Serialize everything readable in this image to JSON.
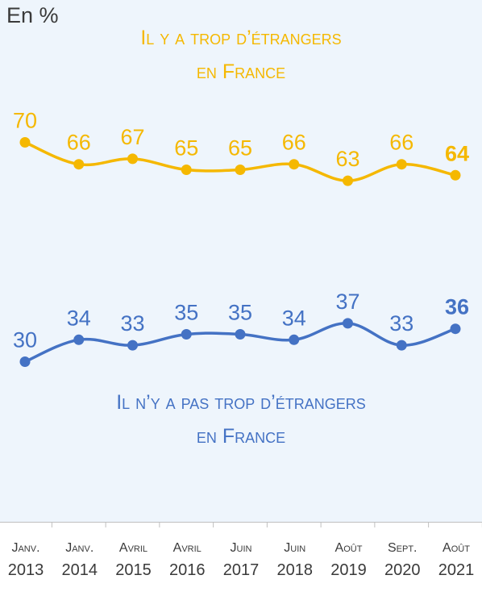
{
  "unit_label": "En %",
  "chart_data": {
    "type": "line",
    "x": [
      {
        "month": "Janv.",
        "year": "2013"
      },
      {
        "month": "Janv.",
        "year": "2014"
      },
      {
        "month": "Avril",
        "year": "2015"
      },
      {
        "month": "Avril",
        "year": "2016"
      },
      {
        "month": "Juin",
        "year": "2017"
      },
      {
        "month": "Juin",
        "year": "2018"
      },
      {
        "month": "Août",
        "year": "2019"
      },
      {
        "month": "Sept.",
        "year": "2020"
      },
      {
        "month": "Août",
        "year": "2021"
      }
    ],
    "series": [
      {
        "name": "Il y a trop d’étrangers en France",
        "name_lines": [
          "Il y a trop d’étrangers",
          "en France"
        ],
        "color": "#f5b800",
        "values": [
          70,
          66,
          67,
          65,
          65,
          66,
          63,
          66,
          64
        ]
      },
      {
        "name": "Il n’y a pas trop d’étrangers en France",
        "name_lines": [
          "Il n’y a pas trop d’étrangers",
          "en France"
        ],
        "color": "#4472c4",
        "values": [
          30,
          34,
          33,
          35,
          35,
          34,
          37,
          33,
          36
        ]
      }
    ],
    "last_value_bold": true,
    "grid": false,
    "legend": "none"
  }
}
